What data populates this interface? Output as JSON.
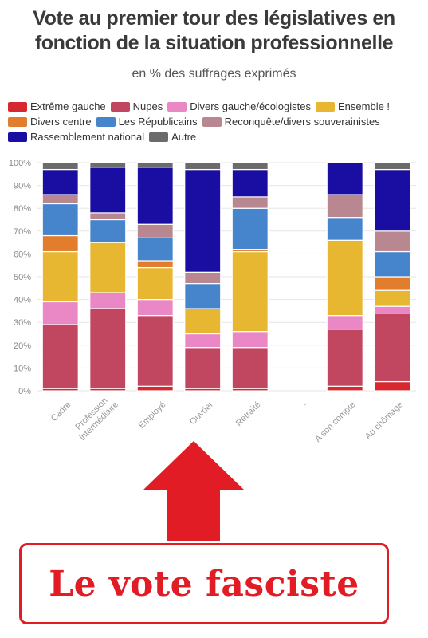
{
  "title_line1": "Vote au premier tour des législatives en",
  "title_line2": "fonction de la situation professionnelle",
  "subtitle": "en % des suffrages exprimés",
  "banner_text": "Le vote fasciste",
  "chart_data": {
    "type": "bar",
    "stacked": true,
    "y_tick_labels": [
      "0%",
      "10%",
      "20%",
      "30%",
      "40%",
      "50%",
      "60%",
      "70%",
      "80%",
      "90%",
      "100%"
    ],
    "ylim": [
      0,
      100
    ],
    "grid": true,
    "legend_placement": "top",
    "categories": [
      "Cadre",
      "Profession intermédiaire",
      "Employé",
      "Ouvrier",
      "Retraité",
      "-",
      "A son compte",
      "Au chômage"
    ],
    "category_label_lines": [
      [
        "Cadre"
      ],
      [
        "Profession",
        "intermédiaire"
      ],
      [
        "Employé"
      ],
      [
        "Ouvrier"
      ],
      [
        "Retraité"
      ],
      [
        "-"
      ],
      [
        "A son compte"
      ],
      [
        "Au chômage"
      ]
    ],
    "series": [
      {
        "name": "Extrême gauche",
        "color": "#d8282f",
        "values": [
          1,
          1,
          2,
          1,
          1,
          null,
          2,
          4
        ]
      },
      {
        "name": "Nupes",
        "color": "#c0475f",
        "values": [
          28,
          35,
          31,
          18,
          18,
          null,
          25,
          30
        ]
      },
      {
        "name": "Divers gauche/écologistes",
        "color": "#ea88c6",
        "values": [
          10,
          7,
          7,
          6,
          7,
          null,
          6,
          3
        ]
      },
      {
        "name": "Ensemble !",
        "color": "#e7b731",
        "values": [
          22,
          22,
          14,
          11,
          35,
          null,
          33,
          7
        ]
      },
      {
        "name": "Divers centre",
        "color": "#e17d2c",
        "values": [
          7,
          0,
          3,
          0,
          1,
          null,
          0,
          6
        ]
      },
      {
        "name": "Les Républicains",
        "color": "#4685cc",
        "values": [
          14,
          10,
          10,
          11,
          18,
          null,
          10,
          11
        ]
      },
      {
        "name": "Reconquête/divers souverainistes",
        "color": "#b9878f",
        "values": [
          4,
          3,
          6,
          5,
          5,
          null,
          10,
          9
        ]
      },
      {
        "name": "Rassemblement national",
        "color": "#1a0da1",
        "values": [
          11,
          20,
          25,
          45,
          12,
          null,
          14,
          27
        ]
      },
      {
        "name": "Autre",
        "color": "#6b6b6b",
        "values": [
          3,
          2,
          2,
          3,
          3,
          null,
          0,
          3
        ]
      }
    ]
  },
  "colors": {
    "title": "#3a3a3a",
    "arrow": "#e11c25",
    "banner_border": "#e11c25",
    "banner_text": "#e11c25"
  }
}
